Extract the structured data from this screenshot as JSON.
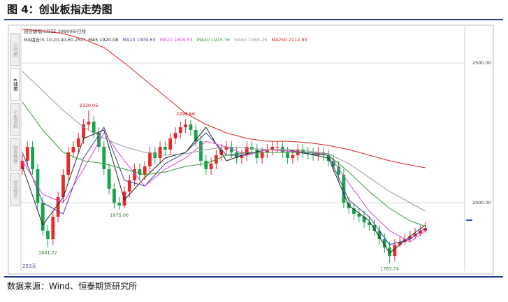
{
  "header": {
    "title": "图 4：创业板指走势图"
  },
  "chart_data": {
    "type": "candlestick",
    "title": "创业板指(CDZE 399006)日线",
    "ma_group_label": "MA组合(5,10,20,40,60,250)",
    "tabs": [
      "分时图",
      "K线图",
      "个股资料",
      "财务数据",
      "综合排名"
    ],
    "period_label": "253天",
    "up_color": "#e8282b",
    "down_color": "#16a34a",
    "ylim": [
      1762.5,
      2625
    ],
    "yticks": [
      {
        "value": 2000,
        "label": "2000.00"
      },
      {
        "value": 2500,
        "label": "2500.00"
      }
    ],
    "grid": true,
    "candles": [
      [
        2120,
        2170,
        2100,
        2150
      ],
      [
        2150,
        2220,
        2130,
        2200
      ],
      [
        2200,
        2220,
        2100,
        2120
      ],
      [
        2120,
        2140,
        1980,
        2000
      ],
      [
        2000,
        2020,
        1880,
        1900
      ],
      [
        1900,
        1920,
        1841.22,
        1870
      ],
      [
        1870,
        1970,
        1850,
        1950
      ],
      [
        1950,
        2040,
        1930,
        2020
      ],
      [
        2020,
        2120,
        2000,
        2100
      ],
      [
        2100,
        2200,
        2080,
        2180
      ],
      [
        2180,
        2220,
        2160,
        2200
      ],
      [
        2200,
        2250,
        2180,
        2230
      ],
      [
        2230,
        2300,
        2210,
        2280
      ],
      [
        2280,
        2330.05,
        2260,
        2290
      ],
      [
        2290,
        2310,
        2230,
        2250
      ],
      [
        2250,
        2270,
        2180,
        2200
      ],
      [
        2200,
        2220,
        2100,
        2120
      ],
      [
        2120,
        2140,
        2030,
        2050
      ],
      [
        2050,
        2070,
        1980,
        2000
      ],
      [
        2000,
        2020,
        1975.06,
        1990
      ],
      [
        1990,
        2060,
        1980,
        2040
      ],
      [
        2040,
        2100,
        2020,
        2080
      ],
      [
        2080,
        2140,
        2060,
        2120
      ],
      [
        2120,
        2140,
        2080,
        2100
      ],
      [
        2100,
        2150,
        2080,
        2130
      ],
      [
        2130,
        2200,
        2110,
        2180
      ],
      [
        2180,
        2200,
        2140,
        2160
      ],
      [
        2160,
        2220,
        2140,
        2200
      ],
      [
        2200,
        2220,
        2170,
        2190
      ],
      [
        2190,
        2250,
        2170,
        2230
      ],
      [
        2230,
        2270,
        2210,
        2250
      ],
      [
        2250,
        2290,
        2230,
        2270
      ],
      [
        2270,
        2299.66,
        2250,
        2280
      ],
      [
        2280,
        2295,
        2240,
        2260
      ],
      [
        2260,
        2280,
        2200,
        2220
      ],
      [
        2220,
        2240,
        2130,
        2150
      ],
      [
        2150,
        2170,
        2100,
        2120
      ],
      [
        2120,
        2160,
        2100,
        2140
      ],
      [
        2140,
        2190,
        2120,
        2170
      ],
      [
        2170,
        2210,
        2150,
        2190
      ],
      [
        2190,
        2220,
        2170,
        2200
      ],
      [
        2200,
        2220,
        2160,
        2180
      ],
      [
        2180,
        2200,
        2140,
        2160
      ],
      [
        2160,
        2190,
        2140,
        2170
      ],
      [
        2170,
        2220,
        2150,
        2200
      ],
      [
        2200,
        2220,
        2170,
        2190
      ],
      [
        2190,
        2210,
        2140,
        2160
      ],
      [
        2160,
        2200,
        2140,
        2180
      ],
      [
        2180,
        2210,
        2160,
        2190
      ],
      [
        2190,
        2220,
        2170,
        2200
      ],
      [
        2200,
        2220,
        2180,
        2200
      ],
      [
        2200,
        2220,
        2160,
        2180
      ],
      [
        2180,
        2200,
        2140,
        2160
      ],
      [
        2160,
        2190,
        2140,
        2170
      ],
      [
        2170,
        2210,
        2150,
        2190
      ],
      [
        2190,
        2210,
        2160,
        2180
      ],
      [
        2180,
        2200,
        2155,
        2175
      ],
      [
        2175,
        2195,
        2150,
        2170
      ],
      [
        2170,
        2200,
        2150,
        2180
      ],
      [
        2180,
        2200,
        2150,
        2170
      ],
      [
        2170,
        2190,
        2130,
        2150
      ],
      [
        2150,
        2170,
        2110,
        2130
      ],
      [
        2130,
        2150,
        2080,
        2100
      ],
      [
        2100,
        2120,
        1980,
        2000
      ],
      [
        2000,
        2020,
        1960,
        1980
      ],
      [
        1980,
        2000,
        1940,
        1960
      ],
      [
        1960,
        1980,
        1930,
        1950
      ],
      [
        1950,
        1970,
        1910,
        1930
      ],
      [
        1930,
        1950,
        1900,
        1920
      ],
      [
        1920,
        1940,
        1880,
        1900
      ],
      [
        1900,
        1920,
        1850,
        1870
      ],
      [
        1870,
        1890,
        1820,
        1840
      ],
      [
        1840,
        1860,
        1783.74,
        1810
      ],
      [
        1810,
        1870,
        1790,
        1850
      ],
      [
        1850,
        1880,
        1840,
        1860
      ],
      [
        1860,
        1890,
        1850,
        1870
      ],
      [
        1870,
        1900,
        1860,
        1880
      ],
      [
        1880,
        1910,
        1870,
        1890
      ],
      [
        1890,
        1920,
        1880,
        1900
      ],
      [
        1900,
        1930,
        1890,
        1910
      ]
    ],
    "ma_x": [
      0,
      4,
      8,
      12,
      16,
      20,
      24,
      28,
      32,
      36,
      40,
      44,
      48,
      52,
      56,
      60,
      64,
      68,
      72,
      76,
      79
    ],
    "series": [
      {
        "name": "MA5 1920.08",
        "color": "#222222",
        "values": [
          2130,
          1920,
          2020,
          2230,
          2260,
          2010,
          2090,
          2160,
          2180,
          2270,
          2150,
          2175,
          2190,
          2190,
          2175,
          2160,
          1990,
          1935,
          1820,
          1880,
          1920
        ]
      },
      {
        "name": "MA10 1909.63",
        "color": "#3b3f9e",
        "values": [
          2180,
          2000,
          1960,
          2160,
          2270,
          2080,
          2060,
          2140,
          2180,
          2250,
          2170,
          2170,
          2190,
          2185,
          2175,
          2170,
          2010,
          1950,
          1850,
          1870,
          1910
        ]
      },
      {
        "name": "MA20 1899.53",
        "color": "#e040e0",
        "values": [
          2150,
          2030,
          2000,
          2120,
          2250,
          2150,
          2060,
          2120,
          2160,
          2220,
          2200,
          2170,
          2190,
          2185,
          2180,
          2175,
          2070,
          1970,
          1900,
          1860,
          1900
        ]
      },
      {
        "name": "MA40 1915.76",
        "color": "#2e9e2e",
        "values": [
          2360,
          2260,
          2180,
          2150,
          2140,
          2120,
          2100,
          2110,
          2130,
          2140,
          2170,
          2180,
          2180,
          2180,
          2180,
          2170,
          2110,
          2040,
          1980,
          1935,
          1916
        ]
      },
      {
        "name": "MA60 1968.26",
        "color": "#9a9a9a",
        "values": [
          2470,
          2400,
          2330,
          2270,
          2230,
          2200,
          2180,
          2170,
          2175,
          2190,
          2200,
          2195,
          2190,
          2190,
          2185,
          2175,
          2140,
          2090,
          2040,
          2000,
          1970
        ]
      },
      {
        "name": "MA250 2112.85",
        "color": "#e02020",
        "values": [
          2620,
          2615,
          2605,
          2585,
          2555,
          2500,
          2440,
          2380,
          2320,
          2280,
          2250,
          2230,
          2220,
          2220,
          2215,
          2205,
          2190,
          2170,
          2150,
          2135,
          2125
        ]
      }
    ],
    "annotations": [
      {
        "x": 13,
        "y": 2330.05
      },
      {
        "x": 32,
        "y": 2299.66
      },
      {
        "x": 19,
        "y": 1975.06
      },
      {
        "x": 5,
        "y": 1841.22
      },
      {
        "x": 72,
        "y": 1783.74
      }
    ]
  },
  "footer": {
    "source": "数据来源：Wind、恒泰期货研究所"
  }
}
